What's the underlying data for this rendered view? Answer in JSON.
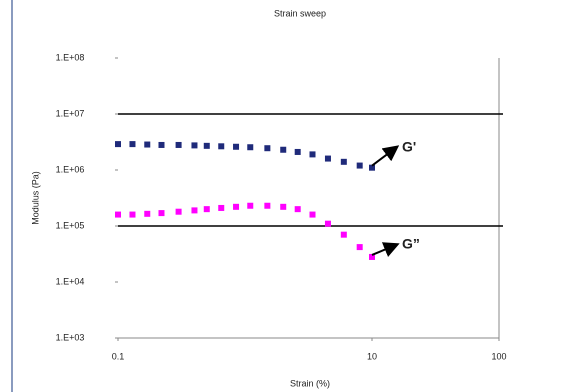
{
  "chart_data": {
    "type": "scatter",
    "title": "Strain sweep",
    "xlabel": "Strain (%)",
    "ylabel": "Modulus (Pa)",
    "log_x": true,
    "log_y": true,
    "x": [
      0.1,
      0.13,
      0.17,
      0.22,
      0.3,
      0.4,
      0.5,
      0.65,
      0.85,
      1.1,
      1.5,
      2,
      2.6,
      3.4,
      4.5,
      6,
      8,
      10
    ],
    "series": [
      {
        "name": "G'",
        "color": "#1f2a7a",
        "values": [
          2900000,
          2900000,
          2850000,
          2800000,
          2800000,
          2750000,
          2700000,
          2650000,
          2600000,
          2550000,
          2450000,
          2300000,
          2100000,
          1900000,
          1600000,
          1400000,
          1200000,
          1100000
        ]
      },
      {
        "name": "G”",
        "color": "#ff00ff",
        "values": [
          160000,
          160000,
          165000,
          170000,
          180000,
          190000,
          200000,
          210000,
          220000,
          230000,
          230000,
          220000,
          200000,
          160000,
          110000,
          70000,
          42000,
          28000
        ]
      }
    ],
    "xlim": [
      0.1,
      100
    ],
    "xticks": [
      {
        "value": 0.1,
        "label": "0.1"
      },
      10,
      100
    ],
    "ylim": [
      1000,
      100000000
    ],
    "yticks": [
      {
        "value": 100000000,
        "label": "1.E+08"
      },
      {
        "value": 10000000,
        "label": "1.E+07"
      },
      {
        "value": 1000000,
        "label": "1.E+06"
      },
      {
        "value": 100000,
        "label": "1.E+05"
      },
      {
        "value": 10000,
        "label": "1.E+04"
      },
      {
        "value": 1000,
        "label": "1.E+03"
      }
    ],
    "grid_lines": [
      10000000,
      100000
    ]
  }
}
